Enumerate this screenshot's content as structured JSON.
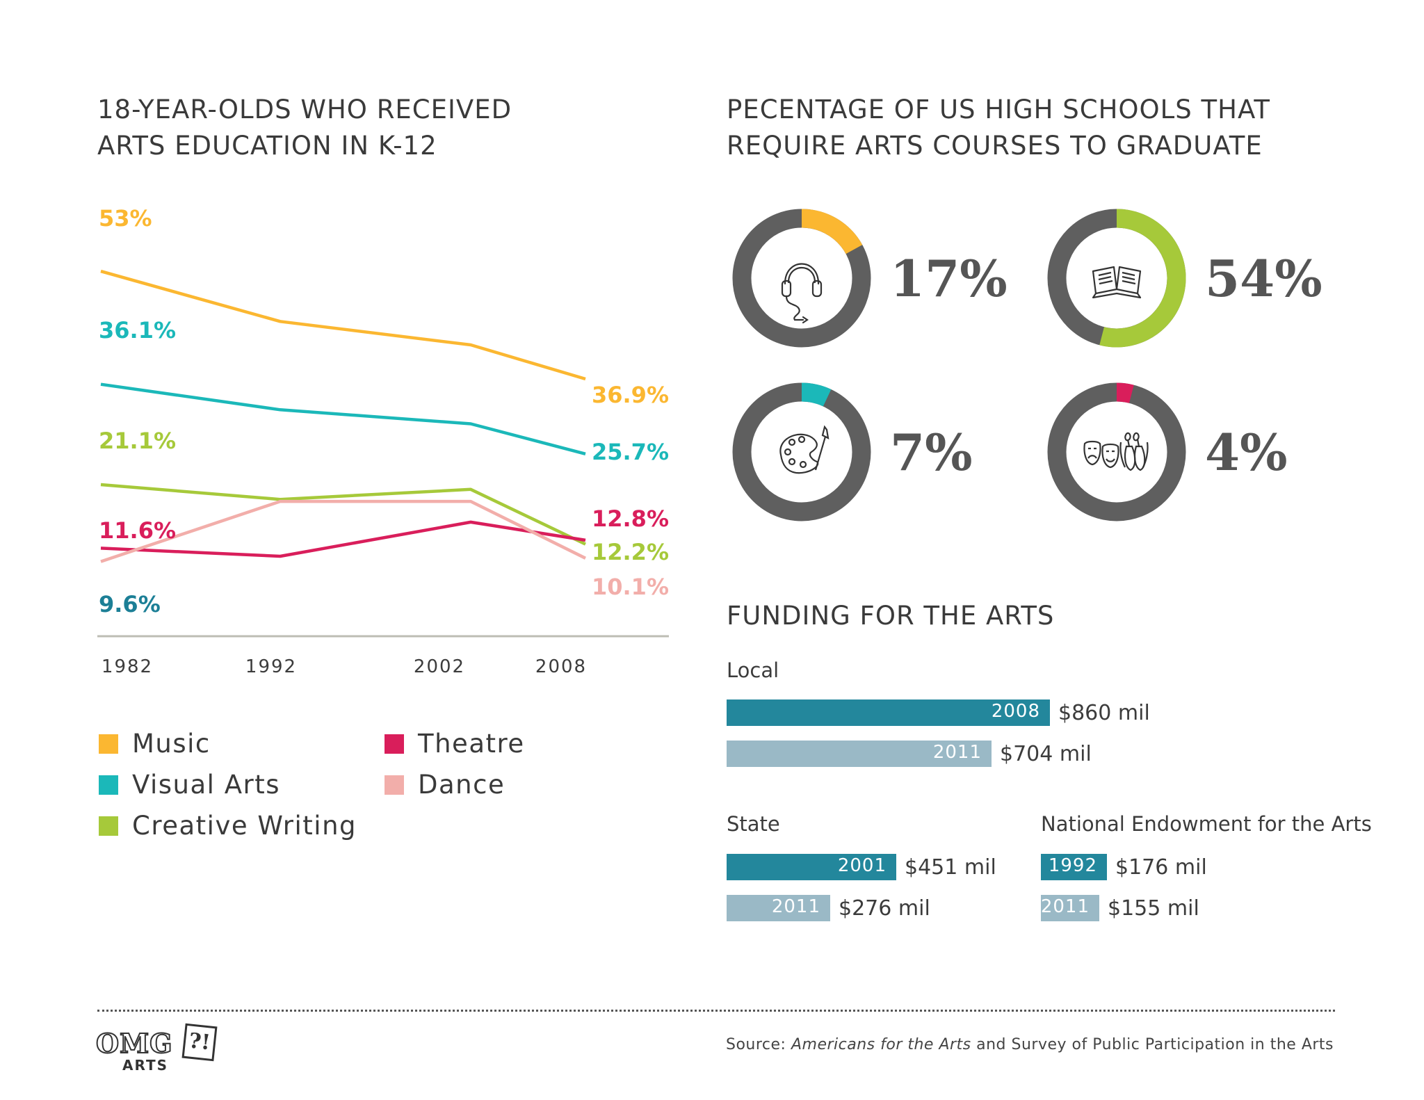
{
  "colors": {
    "music": "#fbb731",
    "visual_arts": "#1bb8b9",
    "creative_writing": "#a6c93a",
    "theatre": "#d91e5b",
    "dance": "#f2aeaa",
    "donut_track": "#5f5f5f",
    "bar_dark": "#23879c",
    "bar_light": "#9ab9c6",
    "axis": "#bdbdb4",
    "label_9_6": "#1c7f96"
  },
  "left_chart": {
    "title_line1": "18-YEAR-OLDS WHO RECEIVED",
    "title_line2": "ARTS EDUCATION IN K-12"
  },
  "right_chart": {
    "title_line1": "PECENTAGE OF US HIGH SCHOOLS THAT",
    "title_line2": "REQUIRE ARTS COURSES TO GRADUATE"
  },
  "funding": {
    "title": "FUNDING FOR THE ARTS",
    "local": {
      "label": "Local",
      "bars": [
        {
          "year": "2008",
          "amount": "$860 mil",
          "value": 860
        },
        {
          "year": "2011",
          "amount": "$704 mil",
          "value": 704
        }
      ]
    },
    "state": {
      "label": "State",
      "bars": [
        {
          "year": "2001",
          "amount": "$451 mil",
          "value": 451
        },
        {
          "year": "2011",
          "amount": "$276 mil",
          "value": 276
        }
      ]
    },
    "nea": {
      "label": "National Endowment for the Arts",
      "bars": [
        {
          "year": "1992",
          "amount": "$176 mil",
          "value": 176
        },
        {
          "year": "2011",
          "amount": "$155 mil",
          "value": 155
        }
      ]
    }
  },
  "source": {
    "prefix": "Source: ",
    "italic": "Americans for the Arts",
    "suffix": " and Survey of Public Participation in the Arts"
  },
  "logo": {
    "line1": "OMG",
    "badge": "?!",
    "line2": "ARTS"
  },
  "chart_data": [
    {
      "type": "line",
      "title": "18-YEAR-OLDS WHO RECEIVED ARTS EDUCATION IN K-12",
      "x": [
        1982,
        1992,
        2002,
        2008
      ],
      "x_tick_labels": [
        "1982",
        "1992",
        "2002",
        "2008"
      ],
      "ylim": [
        0,
        60
      ],
      "grid": false,
      "series": [
        {
          "name": "Music",
          "key": "music",
          "values": [
            53,
            45.5,
            42,
            36.9
          ],
          "start_label": "53%",
          "end_label": "36.9%"
        },
        {
          "name": "Visual Arts",
          "key": "visual_arts",
          "values": [
            36.1,
            32.3,
            30.2,
            25.7
          ],
          "start_label": "36.1%",
          "end_label": "25.7%"
        },
        {
          "name": "Creative Writing",
          "key": "creative_writing",
          "values": [
            21.1,
            18.9,
            20.4,
            12.2
          ],
          "start_label": "21.1%",
          "end_label": "12.2%"
        },
        {
          "name": "Theatre",
          "key": "theatre",
          "values": [
            11.6,
            10.4,
            15.5,
            12.8
          ],
          "start_label": "11.6%",
          "end_label": "12.8%"
        },
        {
          "name": "Dance",
          "key": "dance",
          "values": [
            9.6,
            18.6,
            18.6,
            10.1
          ],
          "start_label": "9.6%",
          "end_label": "10.1%"
        }
      ],
      "legend": [
        "Music",
        "Visual Arts",
        "Creative Writing",
        "Theatre",
        "Dance"
      ]
    },
    {
      "type": "pie",
      "title": "PECENTAGE OF US HIGH SCHOOLS THAT REQUIRE ARTS COURSES TO GRADUATE",
      "donuts": [
        {
          "category": "Music",
          "icon": "headphones-icon",
          "value": 17,
          "label": "17%",
          "color_key": "music"
        },
        {
          "category": "Creative Writing",
          "icon": "open-book-icon",
          "value": 54,
          "label": "54%",
          "color_key": "creative_writing"
        },
        {
          "category": "Visual Arts",
          "icon": "palette-icon",
          "value": 7,
          "label": "7%",
          "color_key": "visual_arts"
        },
        {
          "category": "Theatre/Dance",
          "icon": "theatre-masks-ballet-shoes-icon",
          "value": 4,
          "label": "4%",
          "color_key": "theatre"
        }
      ]
    },
    {
      "type": "bar",
      "title": "FUNDING FOR THE ARTS",
      "ylabel": "mil",
      "groups": [
        {
          "name": "Local",
          "categories": [
            "2008",
            "2011"
          ],
          "values": [
            860,
            704
          ]
        },
        {
          "name": "State",
          "categories": [
            "2001",
            "2011"
          ],
          "values": [
            451,
            276
          ]
        },
        {
          "name": "National Endowment for the Arts",
          "categories": [
            "1992",
            "2011"
          ],
          "values": [
            176,
            155
          ]
        }
      ]
    }
  ]
}
